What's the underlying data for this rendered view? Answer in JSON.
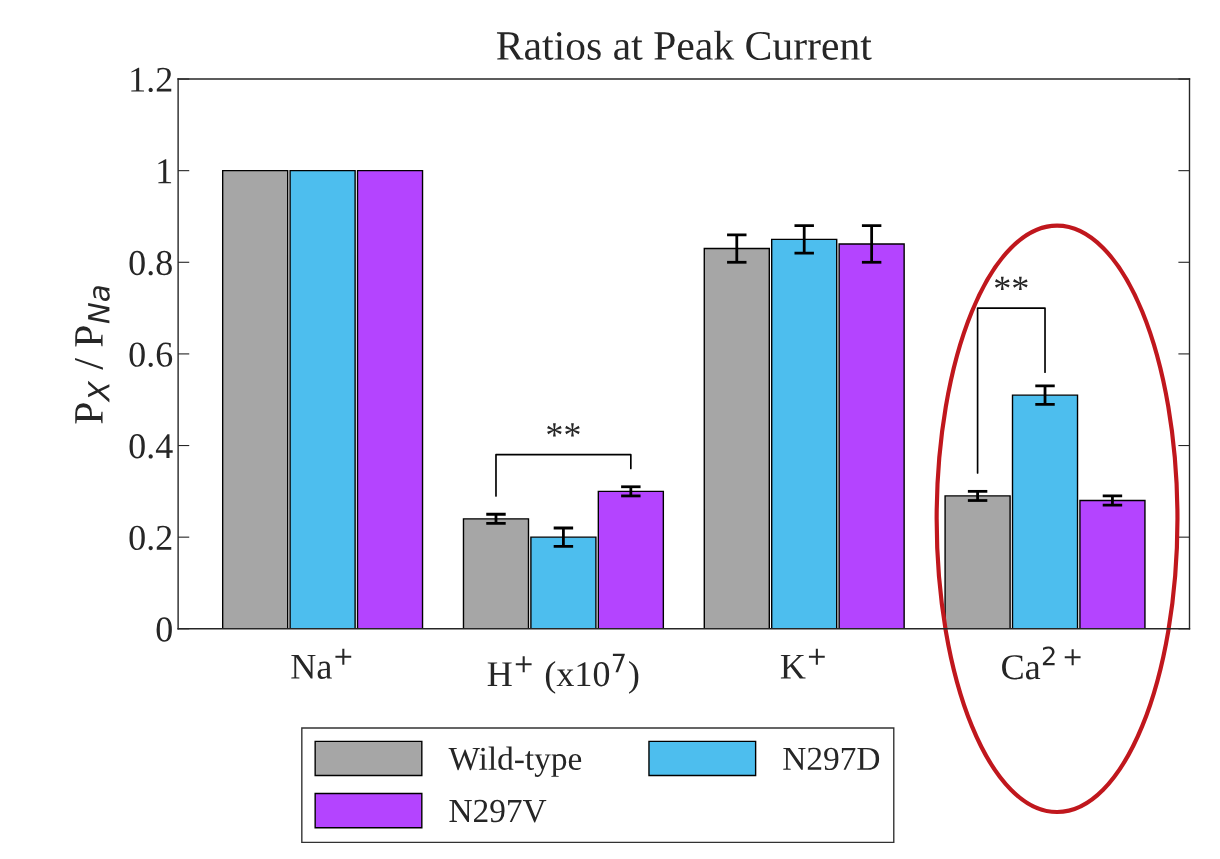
{
  "chart_data": {
    "type": "bar",
    "title": "Ratios at Peak Current",
    "ylabel": "P$_{X}$ / P$_{Na}$",
    "categories": [
      "Na$^{+}$",
      "H$^{+}$ (x10$^{7}$)",
      "K$^{+}$",
      "Ca$^{2+}$"
    ],
    "series": [
      {
        "name": "Wild-type",
        "color": "#a6a6a6",
        "values": [
          1,
          0.24,
          0.83,
          0.29
        ],
        "errors": [
          null,
          0.01,
          0.03,
          0.01
        ]
      },
      {
        "name": "N297D",
        "color": "#4dbeee",
        "values": [
          1,
          0.2,
          0.85,
          0.51
        ],
        "errors": [
          null,
          0.02,
          0.03,
          0.02
        ]
      },
      {
        "name": "N297V",
        "color": "#b444ff",
        "values": [
          1,
          0.3,
          0.84,
          0.28
        ],
        "errors": [
          null,
          0.01,
          0.04,
          0.01
        ]
      }
    ],
    "ylim": [
      0,
      1.2
    ],
    "yticks": [
      0,
      0.2,
      0.4,
      0.6,
      0.8,
      1,
      1.2
    ],
    "annotations": [
      "**",
      "**"
    ],
    "legend": "bottom",
    "grid": false
  }
}
